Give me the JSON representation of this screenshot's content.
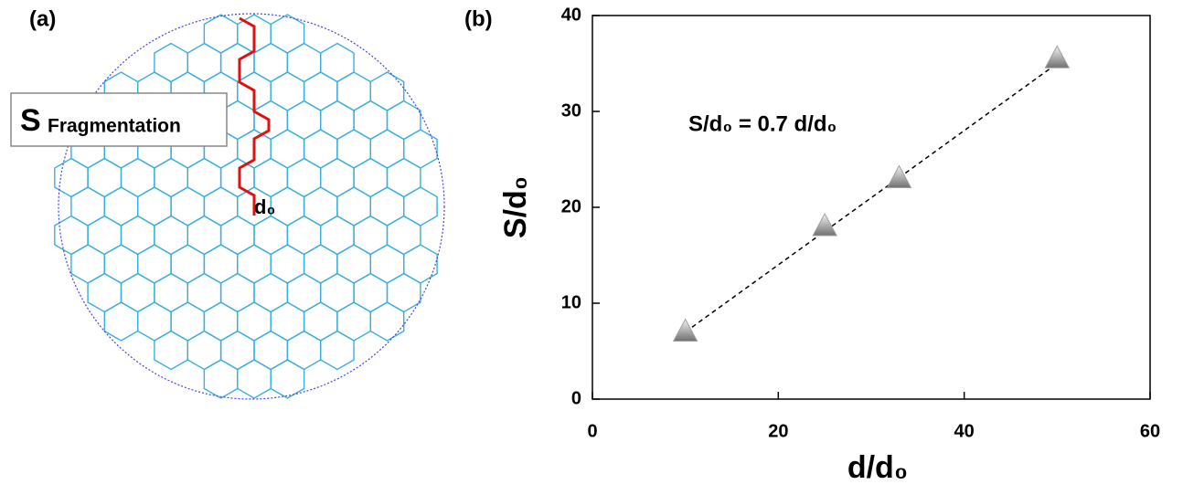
{
  "panel_a": {
    "label": "(a)",
    "box_symbol": "S",
    "box_text": "Fragmentation",
    "grain_label": "d₀"
  },
  "chart_data": {
    "type": "scatter",
    "panel_label": "(b)",
    "x_label": "d/d₀",
    "y_label": "S/d₀",
    "annotation": "S/d₀ = 0.7 d/d₀",
    "series": [
      {
        "x": [
          10,
          25,
          33,
          50
        ],
        "values": [
          7,
          18,
          23,
          35.5
        ],
        "color": "#a0a0a0",
        "marker": "triangle"
      },
      {
        "x": [
          10,
          50
        ],
        "values": [
          7,
          35
        ],
        "color": "#000000",
        "style": "dashed"
      }
    ],
    "xlim": [
      0,
      60
    ],
    "ylim": [
      0,
      40
    ],
    "xticks": [
      0,
      20,
      40,
      60
    ],
    "yticks": [
      0,
      10,
      20,
      30,
      40
    ]
  }
}
